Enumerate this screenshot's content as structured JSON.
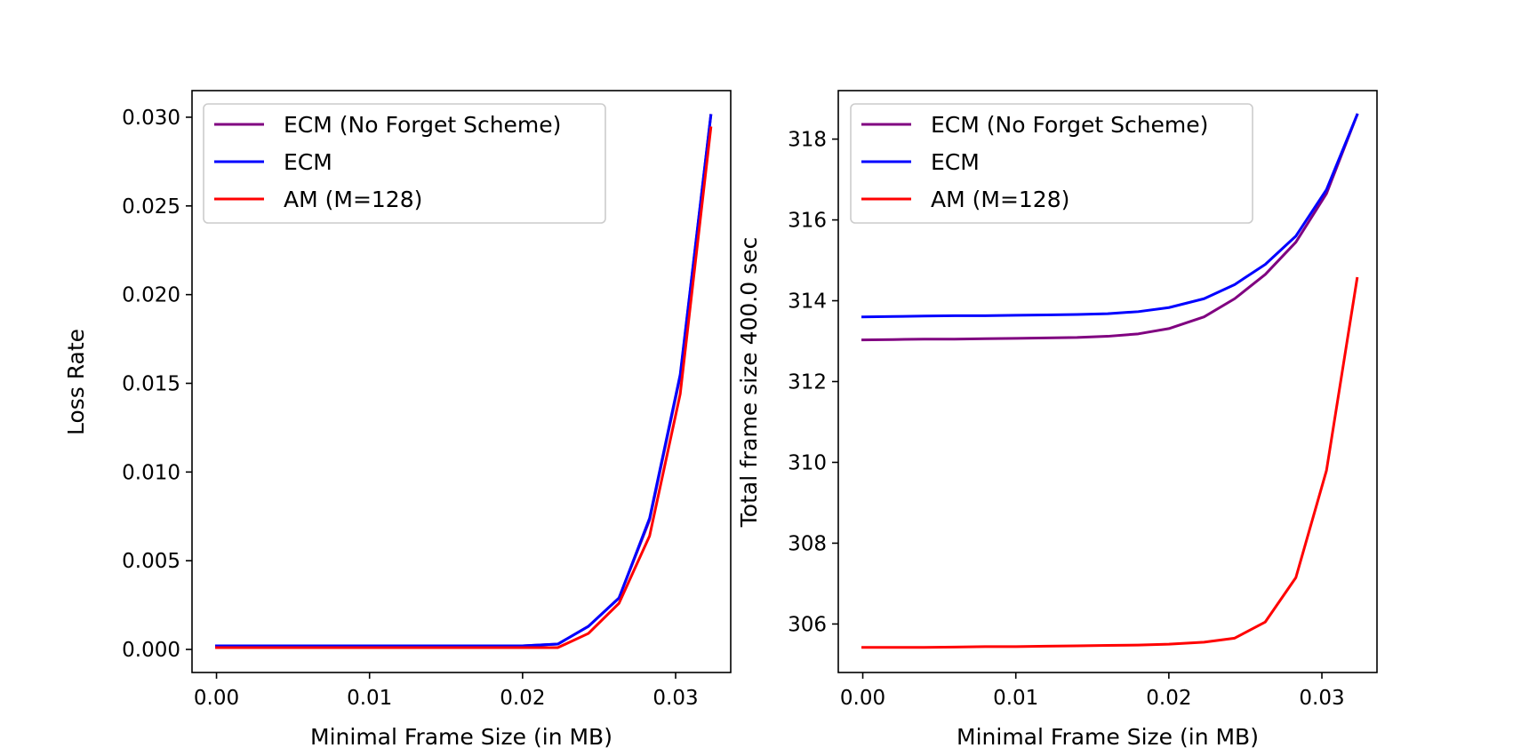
{
  "chart_data": [
    {
      "type": "line",
      "xlabel": "Minimal Frame Size (in MB)",
      "ylabel": "Loss Rate",
      "xlim": [
        -0.0016,
        0.0336
      ],
      "ylim": [
        -0.0013,
        0.0315
      ],
      "xticks": [
        "0.00",
        "0.01",
        "0.02",
        "0.03"
      ],
      "yticks": [
        "0.000",
        "0.005",
        "0.010",
        "0.015",
        "0.020",
        "0.025",
        "0.030"
      ],
      "legend_position": "upper-left",
      "x": [
        0.0,
        0.002,
        0.004,
        0.006,
        0.008,
        0.01,
        0.012,
        0.014,
        0.016,
        0.018,
        0.02,
        0.0223,
        0.0243,
        0.0263,
        0.0283,
        0.0303,
        0.0323
      ],
      "series": [
        {
          "name": "ECM (No Forget Scheme)",
          "color": "#800080",
          "values": [
            0.0002,
            0.0002,
            0.0002,
            0.0002,
            0.0002,
            0.0002,
            0.0002,
            0.0002,
            0.0002,
            0.0002,
            0.0002,
            0.0003,
            0.0013,
            0.0029,
            0.0073,
            0.0154,
            0.0301
          ]
        },
        {
          "name": "ECM",
          "color": "#0000ff",
          "values": [
            0.0002,
            0.0002,
            0.0002,
            0.0002,
            0.0002,
            0.0002,
            0.0002,
            0.0002,
            0.0002,
            0.0002,
            0.0002,
            0.0003,
            0.0013,
            0.0029,
            0.0074,
            0.0155,
            0.0301
          ]
        },
        {
          "name": "AM (M=128)",
          "color": "#ff0000",
          "values": [
            0.0001,
            0.0001,
            0.0001,
            0.0001,
            0.0001,
            0.0001,
            0.0001,
            0.0001,
            0.0001,
            0.0001,
            0.0001,
            0.0001,
            0.0009,
            0.0026,
            0.0064,
            0.0144,
            0.0294
          ]
        }
      ]
    },
    {
      "type": "line",
      "xlabel": "Minimal Frame Size (in MB)",
      "ylabel": "Total frame size 400.0 sec",
      "xlim": [
        -0.0016,
        0.0336
      ],
      "ylim": [
        304.8,
        319.2
      ],
      "xticks": [
        "0.00",
        "0.01",
        "0.02",
        "0.03"
      ],
      "yticks": [
        "306",
        "308",
        "310",
        "312",
        "314",
        "316",
        "318"
      ],
      "legend_position": "upper-left",
      "x": [
        0.0,
        0.002,
        0.004,
        0.006,
        0.008,
        0.01,
        0.012,
        0.014,
        0.016,
        0.018,
        0.02,
        0.0223,
        0.0243,
        0.0263,
        0.0283,
        0.0303,
        0.0323
      ],
      "series": [
        {
          "name": "ECM (No Forget Scheme)",
          "color": "#800080",
          "values": [
            313.03,
            313.04,
            313.05,
            313.05,
            313.06,
            313.07,
            313.08,
            313.09,
            313.12,
            313.18,
            313.31,
            313.6,
            314.05,
            314.65,
            315.45,
            316.65,
            318.6
          ]
        },
        {
          "name": "ECM",
          "color": "#0000ff",
          "values": [
            313.6,
            313.61,
            313.62,
            313.63,
            313.63,
            313.64,
            313.65,
            313.66,
            313.68,
            313.73,
            313.83,
            314.05,
            314.4,
            314.9,
            315.6,
            316.75,
            318.6
          ]
        },
        {
          "name": "AM (M=128)",
          "color": "#ff0000",
          "values": [
            305.42,
            305.42,
            305.42,
            305.43,
            305.44,
            305.44,
            305.45,
            305.46,
            305.47,
            305.48,
            305.5,
            305.55,
            305.65,
            306.05,
            307.15,
            309.8,
            314.55
          ]
        }
      ]
    }
  ]
}
